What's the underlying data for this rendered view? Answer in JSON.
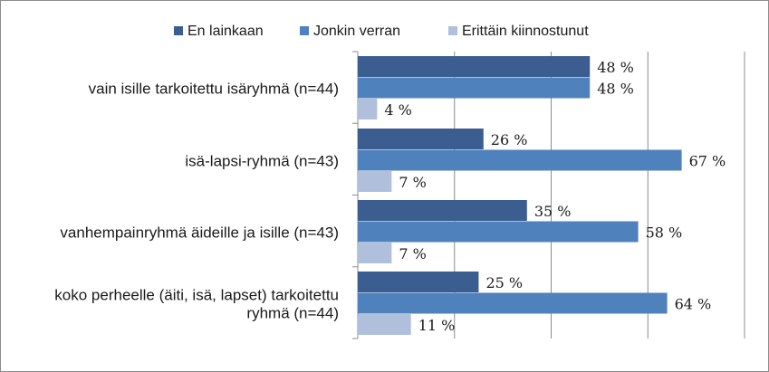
{
  "chart_data": {
    "type": "bar",
    "orientation": "horizontal",
    "categories": [
      [
        "vain isille tarkoitettu isäryhmä (n=44)"
      ],
      [
        "isä-lapsi-ryhmä (n=43)"
      ],
      [
        "vanhempainryhmä äideille ja isille (n=43)"
      ],
      [
        "koko perheelle (äiti, isä, lapset) tarkoitettu",
        "ryhmä (n=44)"
      ]
    ],
    "series": [
      {
        "name": "En lainkaan",
        "values": [
          48,
          26,
          35,
          25
        ],
        "labels": [
          "48 %",
          "26 %",
          "35 %",
          "25 %"
        ],
        "color": "#3b5d8f"
      },
      {
        "name": "Jonkin verran",
        "values": [
          48,
          67,
          58,
          64
        ],
        "labels": [
          "48 %",
          "67 %",
          "58 %",
          "64 %"
        ],
        "color": "#4f81bd"
      },
      {
        "name": "Erittäin kiinnostunut",
        "values": [
          4,
          7,
          7,
          11
        ],
        "labels": [
          "4 %",
          "7 %",
          "7 %",
          "11 %"
        ],
        "color": "#b0bfdc"
      }
    ],
    "xlim": [
      0,
      80
    ],
    "grid": true,
    "legend_position": "top",
    "title": "",
    "xlabel": "",
    "ylabel": ""
  }
}
